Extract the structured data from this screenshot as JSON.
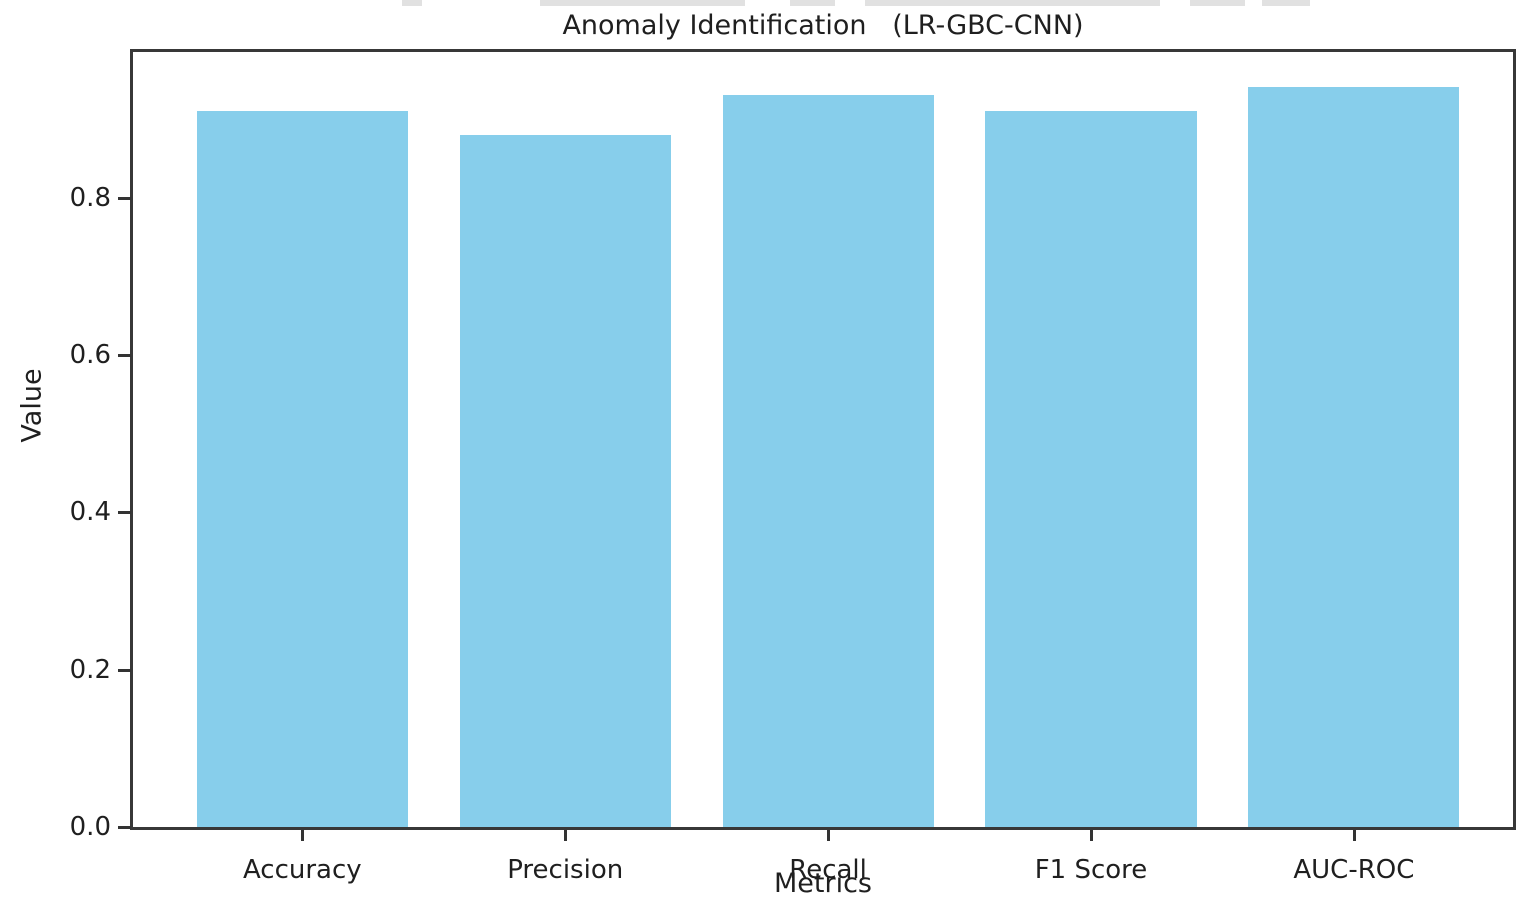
{
  "chart_data": {
    "type": "bar",
    "title": "Anomaly Identification   (LR-GBC-CNN)",
    "categories": [
      "Accuracy",
      "Precision",
      "Recall",
      "F1 Score",
      "AUC-ROC"
    ],
    "values": [
      0.91,
      0.88,
      0.93,
      0.91,
      0.94
    ],
    "xlabel": "Metrics",
    "ylabel": "Value",
    "ylim": [
      0,
      0.985
    ],
    "yticks": [
      0.0,
      0.2,
      0.4,
      0.6,
      0.8
    ],
    "ytick_labels": [
      "0.0",
      "0.2",
      "0.4",
      "0.6",
      "0.8"
    ],
    "bar_color": "#87ceeb",
    "axis_color": "#383838",
    "tick_color": "#333333",
    "text_color": "#1f1f1f",
    "background": "#ffffff",
    "grid": false,
    "legend": false
  }
}
